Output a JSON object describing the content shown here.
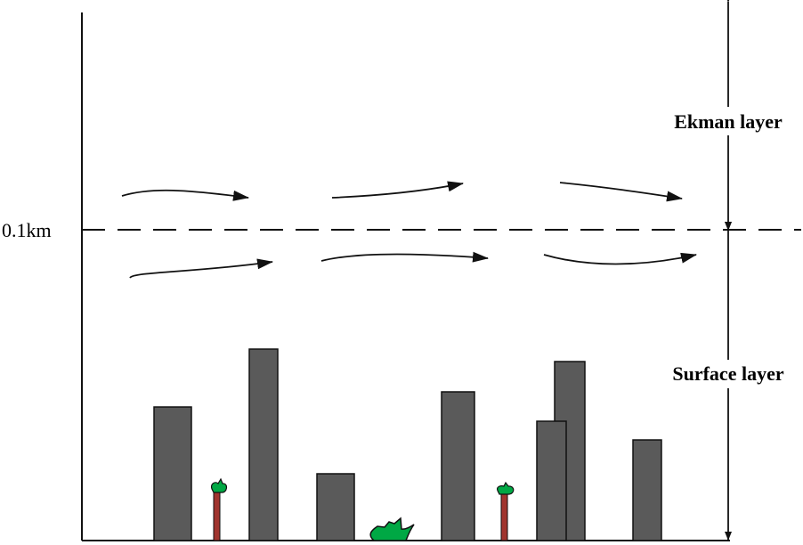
{
  "labels": {
    "height_marker": "0.1km",
    "upper_layer": "Ekman layer",
    "lower_layer": "Surface layer"
  },
  "colors": {
    "building": "#5a5a5a",
    "foliage": "#00a844",
    "trunk": "#a0342e",
    "line": "#111111"
  }
}
